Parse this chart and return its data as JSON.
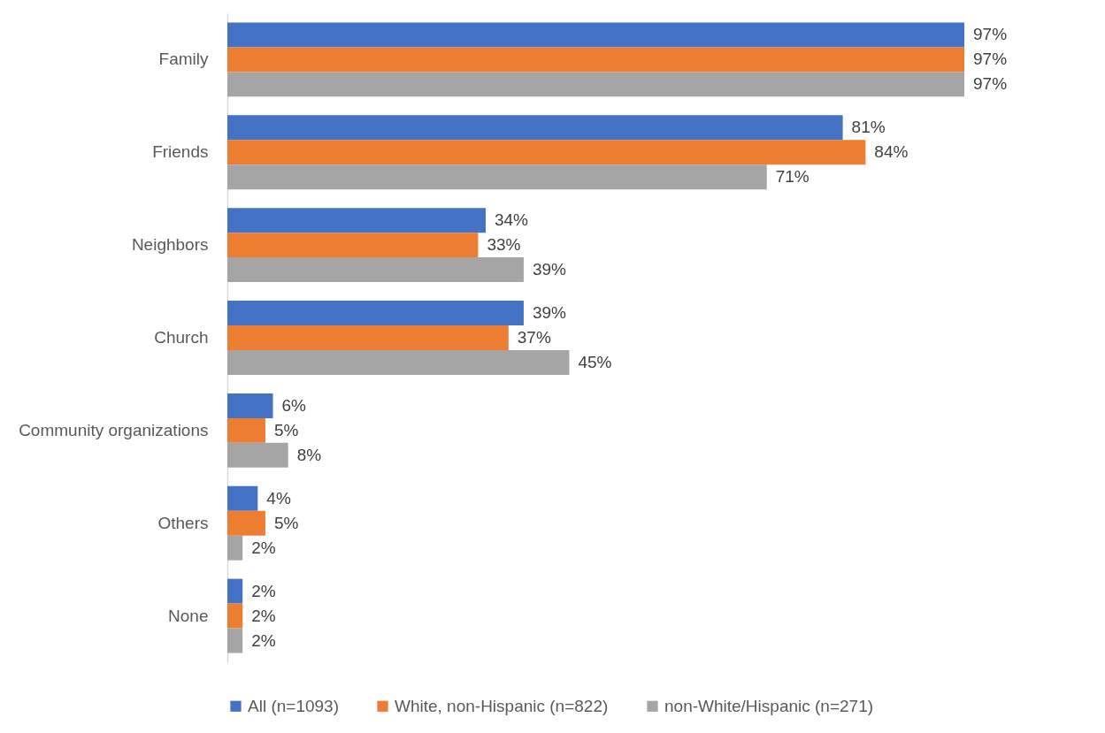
{
  "chart_data": {
    "type": "bar",
    "orientation": "horizontal",
    "categories": [
      "Family",
      "Friends",
      "Neighbors",
      "Church",
      "Community organizations",
      "Others",
      "None"
    ],
    "series": [
      {
        "name": "All (n=1093)",
        "color": "#4472c4",
        "values": [
          97,
          81,
          34,
          39,
          6,
          4,
          2
        ],
        "value_labels": [
          "97%",
          "81%",
          "34%",
          "39%",
          "6%",
          "4%",
          "2%"
        ]
      },
      {
        "name": "White, non-Hispanic (n=822)",
        "color": "#ed7d31",
        "values": [
          97,
          84,
          33,
          37,
          5,
          5,
          2
        ],
        "value_labels": [
          "97%",
          "84%",
          "33%",
          "37%",
          "5%",
          "5%",
          "2%"
        ]
      },
      {
        "name": "non-White/Hispanic (n=271)",
        "color": "#a5a5a5",
        "values": [
          97,
          71,
          39,
          45,
          8,
          2,
          2
        ],
        "value_labels": [
          "97%",
          "71%",
          "39%",
          "45%",
          "8%",
          "2%",
          "2%"
        ]
      }
    ],
    "tick_labels": "y",
    "grid": false,
    "legend": "bottom"
  }
}
